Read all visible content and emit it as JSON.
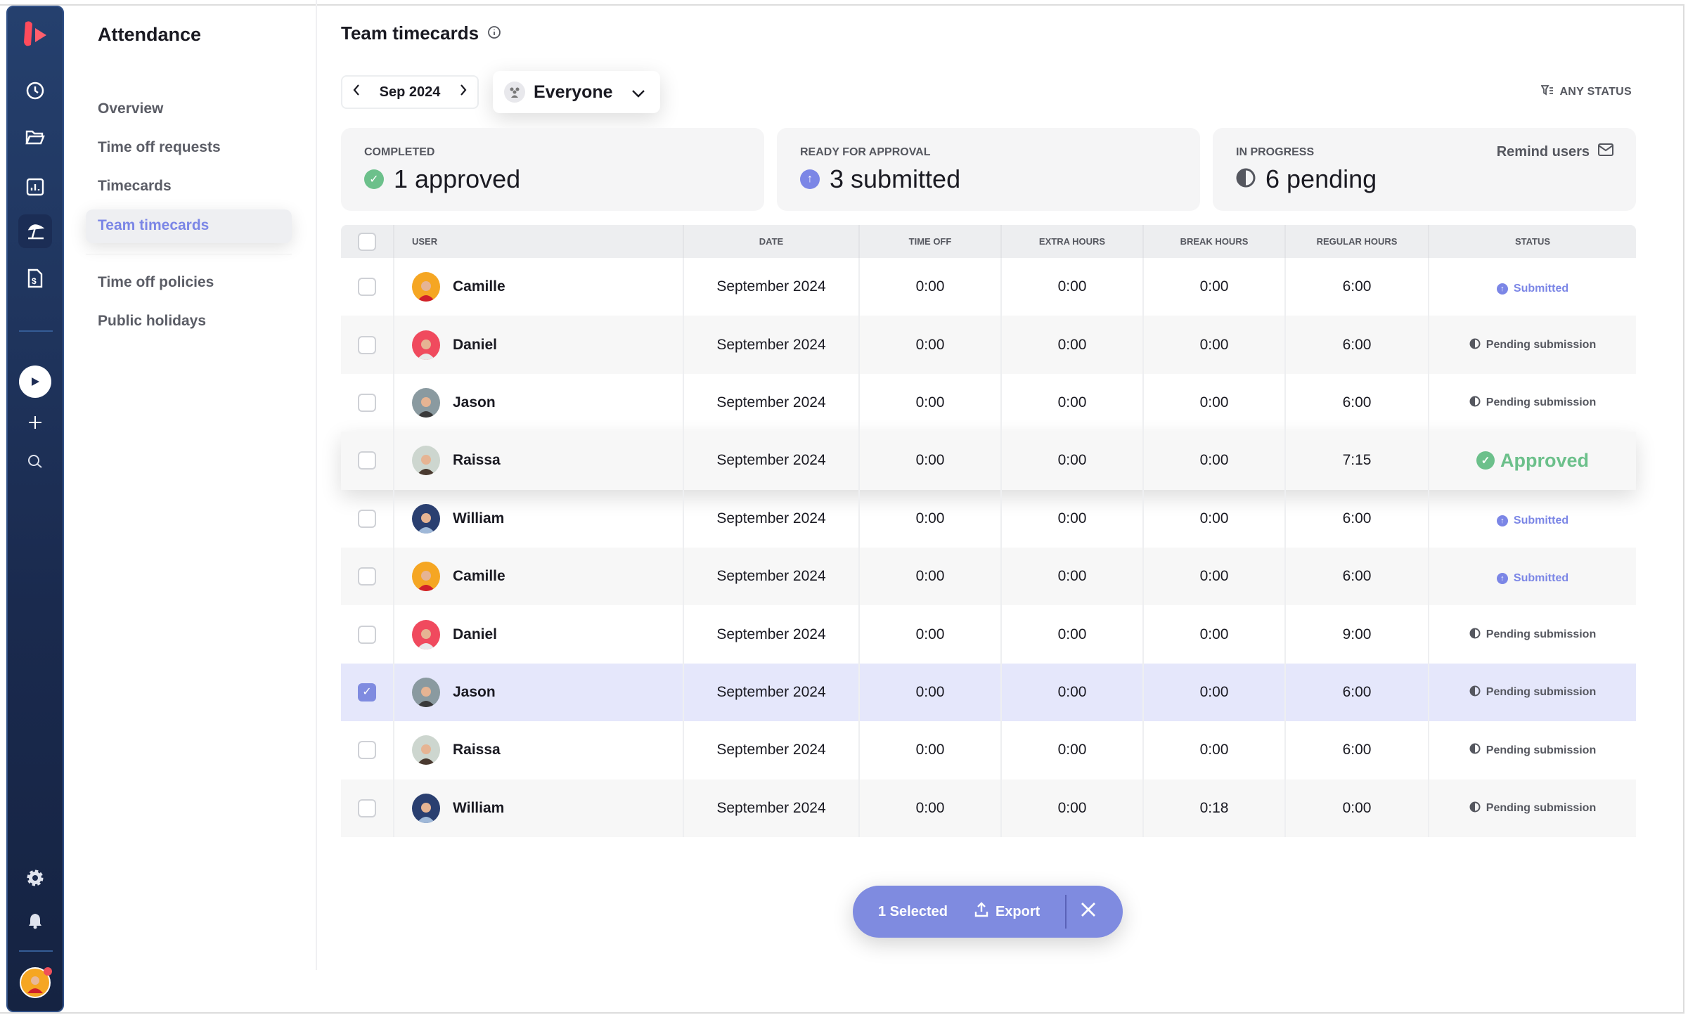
{
  "app": {
    "section_title": "Attendance"
  },
  "rail": {
    "icons": [
      "logo",
      "clock-icon",
      "folder-icon",
      "chart-icon",
      "umbrella-icon",
      "invoice-icon",
      "play-icon",
      "plus-icon",
      "search-icon",
      "gear-icon",
      "bell-icon",
      "avatar"
    ]
  },
  "nav": {
    "items": [
      {
        "label": "Overview"
      },
      {
        "label": "Time off requests"
      },
      {
        "label": "Timecards"
      },
      {
        "label": "Team timecards",
        "active": true
      },
      {
        "label": "Time off policies"
      },
      {
        "label": "Public holidays"
      }
    ]
  },
  "header": {
    "title": "Team timecards",
    "month": "Sep 2024",
    "group": "Everyone",
    "filter": "ANY STATUS"
  },
  "cards": [
    {
      "label": "COMPLETED",
      "value": "1 approved",
      "color": "#6cc08b"
    },
    {
      "label": "READY FOR APPROVAL",
      "value": "3 submitted",
      "color": "#7b86e6"
    },
    {
      "label": "IN PROGRESS",
      "value": "6 pending",
      "action": "Remind users"
    }
  ],
  "table": {
    "columns": [
      "USER",
      "DATE",
      "TIME OFF",
      "EXTRA HOURS",
      "BREAK HOURS",
      "REGULAR HOURS",
      "STATUS"
    ],
    "rows": [
      {
        "user": "Camille",
        "date": "September 2024",
        "time_off": "0:00",
        "extra": "0:00",
        "break": "0:00",
        "regular": "6:00",
        "status": "Submitted",
        "selected": false
      },
      {
        "user": "Daniel",
        "date": "September 2024",
        "time_off": "0:00",
        "extra": "0:00",
        "break": "0:00",
        "regular": "6:00",
        "status": "Pending submission",
        "selected": false
      },
      {
        "user": "Jason",
        "date": "September 2024",
        "time_off": "0:00",
        "extra": "0:00",
        "break": "0:00",
        "regular": "6:00",
        "status": "Pending submission",
        "selected": false
      },
      {
        "user": "Raissa",
        "date": "September 2024",
        "time_off": "0:00",
        "extra": "0:00",
        "break": "0:00",
        "regular": "7:15",
        "status": "Approved",
        "selected": false
      },
      {
        "user": "William",
        "date": "September 2024",
        "time_off": "0:00",
        "extra": "0:00",
        "break": "0:00",
        "regular": "6:00",
        "status": "Submitted",
        "selected": false
      },
      {
        "user": "Camille",
        "date": "September 2024",
        "time_off": "0:00",
        "extra": "0:00",
        "break": "0:00",
        "regular": "6:00",
        "status": "Submitted",
        "selected": false
      },
      {
        "user": "Daniel",
        "date": "September 2024",
        "time_off": "0:00",
        "extra": "0:00",
        "break": "0:00",
        "regular": "9:00",
        "status": "Pending submission",
        "selected": false
      },
      {
        "user": "Jason",
        "date": "September 2024",
        "time_off": "0:00",
        "extra": "0:00",
        "break": "0:00",
        "regular": "6:00",
        "status": "Pending submission",
        "selected": true
      },
      {
        "user": "Raissa",
        "date": "September 2024",
        "time_off": "0:00",
        "extra": "0:00",
        "break": "0:00",
        "regular": "6:00",
        "status": "Pending submission",
        "selected": false
      },
      {
        "user": "William",
        "date": "September 2024",
        "time_off": "0:00",
        "extra": "0:00",
        "break": "0:18",
        "regular": "0:00",
        "status": "Pending submission",
        "selected": false
      }
    ]
  },
  "selection_bar": {
    "count_label": "1 Selected",
    "export_label": "Export"
  },
  "colors": {
    "accent": "#7f8be0",
    "approved": "#6cc08b",
    "rail": "#1f3560",
    "selected_row": "#e5e7fb"
  }
}
